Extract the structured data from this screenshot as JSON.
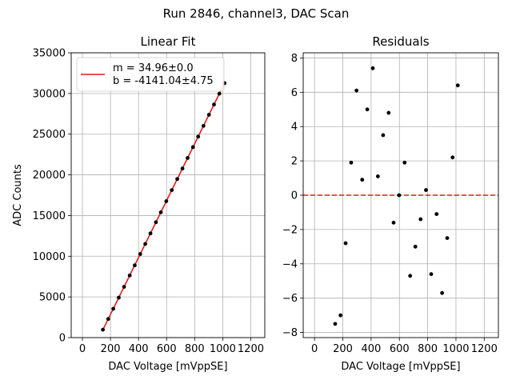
{
  "figure": {
    "suptitle": "Run 2846, channel3, DAC Scan"
  },
  "chart_data": [
    {
      "type": "scatter",
      "title": "Linear Fit",
      "xlabel": "DAC Voltage [mVppSE]",
      "ylabel": "ADC Counts",
      "xlim": [
        -80,
        1300
      ],
      "ylim": [
        0,
        35000
      ],
      "xticks": [
        "0",
        "200",
        "400",
        "600",
        "800",
        "1000",
        "1200"
      ],
      "xtick_values": [
        0,
        200,
        400,
        600,
        800,
        1000,
        1200
      ],
      "yticks": [
        "0",
        "5000",
        "10000",
        "15000",
        "20000",
        "25000",
        "30000",
        "35000"
      ],
      "ytick_values": [
        0,
        5000,
        10000,
        15000,
        20000,
        25000,
        30000,
        35000
      ],
      "grid": true,
      "legend_position": "upper-left",
      "legend": [
        "m = 34.96±0.0",
        "b = -4141.04±4.75"
      ],
      "fit_color": "#e41a1c",
      "point_color": "#000000",
      "series": [
        {
          "x": [
            146,
            184,
            220,
            259,
            297,
            337,
            373,
            412,
            448,
            485,
            524,
            559,
            598,
            637,
            676,
            713,
            750,
            788,
            825,
            863,
            902,
            938,
            976,
            1013
          ],
          "y": [
            971,
            2292,
            3546,
            4916,
            6240,
            7640,
            8878,
            10268,
            11513,
            12806,
            14180,
            15396,
            16765,
            18130,
            19490,
            20780,
            22076,
            23406,
            24695,
            26024,
            27383,
            28645,
            29975,
            31271
          ]
        }
      ],
      "fit_line": {
        "x": [
          146,
          1013
        ],
        "y": [
          963,
          31273
        ]
      }
    },
    {
      "type": "scatter",
      "title": "Residuals",
      "xlabel": "DAC Voltage [mVppSE]",
      "ylabel": "",
      "xlim": [
        -80,
        1300
      ],
      "ylim": [
        -8.3,
        8.3
      ],
      "xticks": [
        "0",
        "200",
        "400",
        "600",
        "800",
        "1000",
        "1200"
      ],
      "xtick_values": [
        0,
        200,
        400,
        600,
        800,
        1000,
        1200
      ],
      "yticks": [
        "−8",
        "−6",
        "−4",
        "−2",
        "0",
        "2",
        "4",
        "6",
        "8"
      ],
      "ytick_values": [
        -8,
        -6,
        -4,
        -2,
        0,
        2,
        4,
        6,
        8
      ],
      "grid": true,
      "zero_line_color": "#e41a1c",
      "point_color": "#000000",
      "series": [
        {
          "x": [
            146,
            184,
            220,
            259,
            297,
            337,
            373,
            412,
            448,
            485,
            524,
            559,
            598,
            637,
            676,
            713,
            750,
            788,
            825,
            863,
            902,
            938,
            976,
            1013
          ],
          "y": [
            -7.5,
            -7.0,
            -2.8,
            1.9,
            6.1,
            0.9,
            5.0,
            7.4,
            1.1,
            3.5,
            4.8,
            -1.6,
            0.0,
            1.9,
            -4.7,
            -3.0,
            -1.4,
            0.3,
            -4.6,
            -1.1,
            -5.7,
            -2.5,
            2.2,
            6.4
          ]
        }
      ]
    }
  ]
}
